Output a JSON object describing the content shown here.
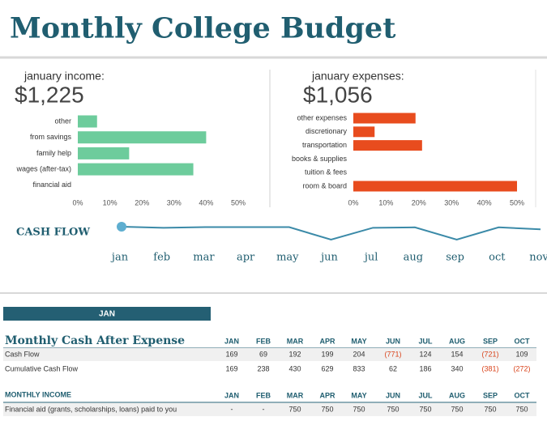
{
  "title": "Monthly College Budget",
  "chart_data": [
    {
      "type": "hbar",
      "title": "january income:",
      "total": "$1,225",
      "categories": [
        "other",
        "from savings",
        "family help",
        "wages (after-tax)",
        "financial aid"
      ],
      "values": [
        6,
        40,
        16,
        36,
        0
      ],
      "color": "#6dcc9c",
      "xlim": [
        0,
        50
      ],
      "xticks": [
        {
          "value": 0,
          "label": "0%"
        },
        {
          "value": 10,
          "label": "10%"
        },
        {
          "value": 20,
          "label": "20%"
        },
        {
          "value": 30,
          "label": "30%"
        },
        {
          "value": 40,
          "label": "40%"
        },
        {
          "value": 50,
          "label": "50%"
        }
      ]
    },
    {
      "type": "hbar",
      "title": "january expenses:",
      "total": "$1,056",
      "categories": [
        "other expenses",
        "discretionary",
        "transportation",
        "books & supplies",
        "tuition & fees",
        "room & board"
      ],
      "values": [
        19,
        6.5,
        21,
        0,
        0,
        50
      ],
      "color": "#e84c1e",
      "xlim": [
        0,
        50
      ],
      "xticks": [
        {
          "value": 0,
          "label": "0%"
        },
        {
          "value": 10,
          "label": "10%"
        },
        {
          "value": 20,
          "label": "20%"
        },
        {
          "value": 30,
          "label": "30%"
        },
        {
          "value": 40,
          "label": "40%"
        },
        {
          "value": 50,
          "label": "50%"
        }
      ]
    },
    {
      "type": "line",
      "title": "CASH FLOW",
      "categories": [
        "jan",
        "feb",
        "mar",
        "apr",
        "may",
        "jun",
        "jul",
        "aug",
        "sep",
        "oct",
        "nov"
      ],
      "values": [
        100,
        95,
        98,
        98,
        98,
        40,
        95,
        97,
        40,
        97,
        88
      ],
      "color": "#3b8aa8"
    }
  ],
  "month_tab": "JAN",
  "table1": {
    "title": "Monthly Cash After Expense",
    "columns": [
      "JAN",
      "FEB",
      "MAR",
      "APR",
      "MAY",
      "JUN",
      "JUL",
      "AUG",
      "SEP",
      "OCT"
    ],
    "rows": [
      {
        "label": "Cash Flow",
        "values": [
          "169",
          "69",
          "192",
          "199",
          "204",
          "(771)",
          "124",
          "154",
          "(721)",
          "109"
        ]
      },
      {
        "label": "Cumulative Cash Flow",
        "values": [
          "169",
          "238",
          "430",
          "629",
          "833",
          "62",
          "186",
          "340",
          "(381)",
          "(272)"
        ]
      }
    ]
  },
  "table2": {
    "title": "MONTHLY INCOME",
    "columns": [
      "JAN",
      "FEB",
      "MAR",
      "APR",
      "MAY",
      "JUN",
      "JUL",
      "AUG",
      "SEP",
      "OCT"
    ],
    "rows": [
      {
        "label": "Financial aid (grants, scholarships, loans) paid to you",
        "values": [
          "-",
          "-",
          "750",
          "750",
          "750",
          "750",
          "750",
          "750",
          "750",
          "750"
        ]
      }
    ]
  }
}
